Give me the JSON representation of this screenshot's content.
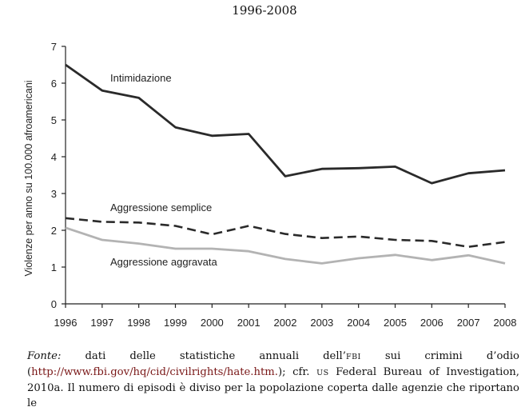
{
  "header": {
    "title": "1996-2008"
  },
  "chart_data": {
    "type": "line",
    "title": "1996-2008",
    "xlabel": "",
    "ylabel": "Violenze per anno su 100.000 afroamericani",
    "x": [
      "1996",
      "1997",
      "1998",
      "1999",
      "2000",
      "2001",
      "2002",
      "2003",
      "2004",
      "2005",
      "2006",
      "2007",
      "2008"
    ],
    "ylim": [
      0,
      7
    ],
    "yticks": [
      "0",
      "1",
      "2",
      "3",
      "4",
      "5",
      "6",
      "7"
    ],
    "grid": false,
    "series": [
      {
        "name": "Intimidazione",
        "style": "solid",
        "color": "#2a2a2a",
        "values": [
          6.5,
          5.8,
          5.6,
          4.8,
          4.57,
          4.62,
          3.47,
          3.67,
          3.69,
          3.73,
          3.28,
          3.55,
          3.63
        ]
      },
      {
        "name": "Aggressione semplice",
        "style": "dashed",
        "color": "#2a2a2a",
        "values": [
          2.33,
          2.23,
          2.21,
          2.12,
          1.89,
          2.12,
          1.9,
          1.79,
          1.83,
          1.74,
          1.71,
          1.55,
          1.68
        ]
      },
      {
        "name": "Aggressione aggravata",
        "style": "solid",
        "color": "#b3b3b3",
        "values": [
          2.07,
          1.74,
          1.64,
          1.5,
          1.5,
          1.43,
          1.22,
          1.1,
          1.24,
          1.33,
          1.19,
          1.32,
          1.1
        ]
      }
    ]
  },
  "caption": {
    "fonte_label": "Fonte:",
    "text1": " dati delle statistiche annuali dell’",
    "fbi": "FBI",
    "text2": " sui crimini d’odio (",
    "url": "http://www.fbi.gov/hq/cid/civilrights/hate.htm.",
    "text3": "); cfr. ",
    "us": "US",
    "text4": " Federal Bureau of Investigation, 2010a. Il numero di episodi è diviso per la popolazione coperta dalle agenzie che riportano le"
  }
}
